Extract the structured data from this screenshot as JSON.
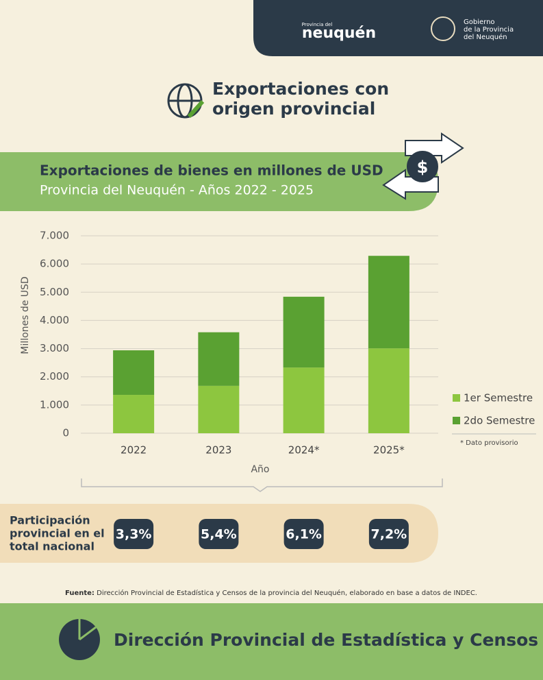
{
  "header": {
    "brand_small": "Provincia del",
    "brand": "neuquén",
    "gov_lines": [
      "Gobierno",
      "de la Provincia",
      "del Neuquén"
    ]
  },
  "title_lines": [
    "Exportaciones con",
    "origen provincial"
  ],
  "chart_data": {
    "type": "stacked_bar",
    "title": "Exportaciones de bienes en millones de USD",
    "subtitle": "Provincia del Neuquén  -  Años 2022 - 2025",
    "y_label": "Millones de USD",
    "x_label": "Año",
    "categories": [
      "2022",
      "2023",
      "2024*",
      "2025*"
    ],
    "series": [
      {
        "name": "1er Semestre",
        "color": "#8dc63f",
        "values": [
          1360,
          1680,
          2330,
          3010
        ]
      },
      {
        "name": "2do Semestre",
        "color": "#5aa132",
        "values": [
          1580,
          1900,
          2510,
          3280
        ]
      }
    ],
    "ylim": [
      0,
      7000
    ],
    "yticks": [
      0,
      {
        "value": 1000,
        "label": "1.000"
      },
      {
        "value": 2000,
        "label": "2.000"
      },
      {
        "value": 3000,
        "label": "3.000"
      },
      {
        "value": 4000,
        "label": "4.000"
      },
      {
        "value": 5000,
        "label": "5.000"
      },
      {
        "value": 6000,
        "label": "6.000"
      },
      {
        "value": 7000,
        "label": "7.000"
      }
    ],
    "grid": true,
    "legend": "right",
    "note": "* Dato provisorio"
  },
  "participation": {
    "label_lines": [
      "Participación",
      "provincial en el",
      "total nacional"
    ],
    "values": [
      "3,3%",
      "5,4%",
      "6,1%",
      "7,2%"
    ]
  },
  "source": {
    "label": "Fuente:",
    "text": " Dirección Provincial de Estadística y Censos de la provincia del Neuquén, elaborado en base a datos de INDEC."
  },
  "footer": "Dirección Provincial de Estadística y Censos"
}
